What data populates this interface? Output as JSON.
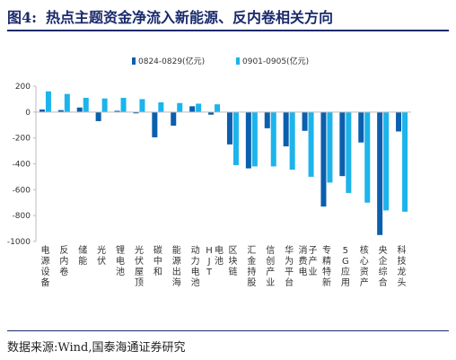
{
  "figure": {
    "label": "图4:",
    "title": "热点主题资金净流入新能源、反内卷相关方向",
    "source": "数据来源:Wind,国泰海通证券研究"
  },
  "colors": {
    "series1": "#0a5fae",
    "series2": "#1cb4ea",
    "axis": "#bbbbbb",
    "rule": "#1a2a6c"
  },
  "chart_data": {
    "type": "bar",
    "categories": [
      "电源设备",
      "反内卷",
      "储能",
      "光伏",
      "锂电池",
      "光伏屋顶",
      "碳中和",
      "能源出海",
      "动力电池",
      "HJT电池",
      "区块链",
      "汇金持股",
      "信创产业",
      "华为平台",
      "消费电子产业",
      "专精特新",
      "5G应用",
      "核心资产",
      "央企综合",
      "科技龙头"
    ],
    "series": [
      {
        "name": "0824-0829(亿元)",
        "values": [
          20,
          15,
          35,
          -70,
          10,
          -10,
          -195,
          -105,
          45,
          -20,
          -250,
          -435,
          -125,
          -265,
          -145,
          -730,
          -495,
          -235,
          -950,
          -150
        ]
      },
      {
        "name": "0901-0905(亿元)",
        "values": [
          160,
          140,
          110,
          105,
          110,
          100,
          75,
          70,
          65,
          60,
          -410,
          -420,
          -420,
          -445,
          -500,
          -545,
          -625,
          -700,
          -760,
          -770
        ]
      }
    ],
    "yticks": [
      200,
      0,
      -200,
      -400,
      -600,
      -800,
      -1000
    ],
    "ylim": [
      -1000,
      200
    ],
    "legend_position": "top-center",
    "grid": false
  }
}
